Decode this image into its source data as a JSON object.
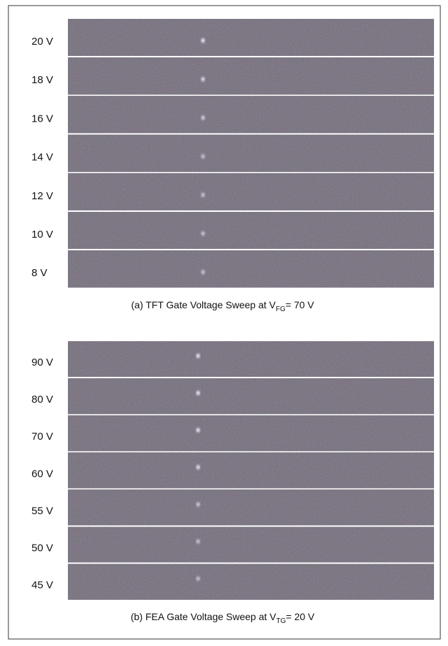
{
  "panels": [
    {
      "labels": [
        "20 V",
        "18 V",
        "16 V",
        "14 V",
        "12 V",
        "10 V",
        "8 V"
      ],
      "caption": {
        "prefix": "(a) TFT Gate Voltage Sweep at V",
        "sub": "FG",
        "suffix": "= 70 V"
      }
    },
    {
      "labels": [
        "90 V",
        "80 V",
        "70 V",
        "60 V",
        "55 V",
        "50 V",
        "45 V"
      ],
      "caption": {
        "prefix": "(b) FEA Gate Voltage Sweep at V",
        "sub": "TG",
        "suffix": "= 20 V"
      }
    }
  ]
}
